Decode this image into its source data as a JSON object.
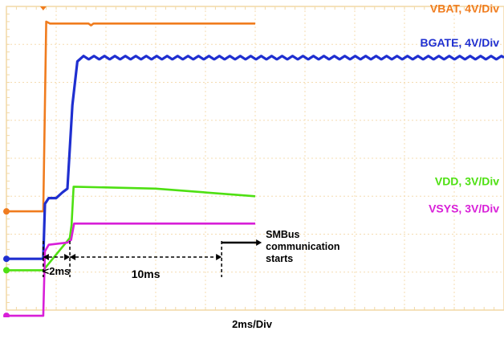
{
  "chart_data": {
    "type": "line",
    "xlabel": "2ms/Div",
    "x_unit": "ms",
    "x_per_div_ms": 2,
    "divisions": {
      "x": 10,
      "y": 8
    },
    "grid": true,
    "series": [
      {
        "name": "VBAT, 4V/Div",
        "color": "#f07c1e",
        "points": [
          [
            0,
            2.6
          ],
          [
            1.48,
            2.6
          ],
          [
            1.6,
            7.6
          ],
          [
            1.75,
            7.55
          ],
          [
            3.3,
            7.55
          ],
          [
            3.4,
            7.5
          ],
          [
            3.5,
            7.55
          ],
          [
            10,
            7.55
          ]
        ]
      },
      {
        "name": "BGATE, 4V/Div",
        "color": "#1f2fd0",
        "points": [
          [
            0,
            1.35
          ],
          [
            1.48,
            1.35
          ],
          [
            1.55,
            2.8
          ],
          [
            1.7,
            2.95
          ],
          [
            2.0,
            2.95
          ],
          [
            2.25,
            3.1
          ],
          [
            2.45,
            3.2
          ],
          [
            2.65,
            5.4
          ],
          [
            2.85,
            6.55
          ],
          [
            3.1,
            6.65
          ],
          [
            10,
            6.65
          ]
        ],
        "ripple": {
          "start_ms": 3.1,
          "amplitude_div": 0.09,
          "period_ms": 0.42
        }
      },
      {
        "name": "VDD, 3V/Div",
        "color": "#4ee012",
        "points": [
          [
            0,
            1.05
          ],
          [
            1.48,
            1.05
          ],
          [
            2.55,
            1.9
          ],
          [
            2.62,
            2.25
          ],
          [
            2.7,
            3.25
          ],
          [
            6,
            3.2
          ],
          [
            10,
            3.0
          ]
        ]
      },
      {
        "name": "VSYS, 3V/Div",
        "color": "#d81fd8",
        "points": [
          [
            0,
            -0.15
          ],
          [
            1.48,
            -0.15
          ],
          [
            1.55,
            1.55
          ],
          [
            1.7,
            1.72
          ],
          [
            2.45,
            1.78
          ],
          [
            2.6,
            1.85
          ],
          [
            2.72,
            2.28
          ],
          [
            10,
            2.28
          ]
        ]
      }
    ],
    "annotations": [
      {
        "text": "<2ms",
        "from_ms": 1.48,
        "to_ms": 2.55
      },
      {
        "text": "10ms",
        "from_ms": 2.55,
        "to_ms": 8.65
      },
      {
        "text": "SMBus communication starts",
        "at_ms": 8.65
      }
    ]
  }
}
